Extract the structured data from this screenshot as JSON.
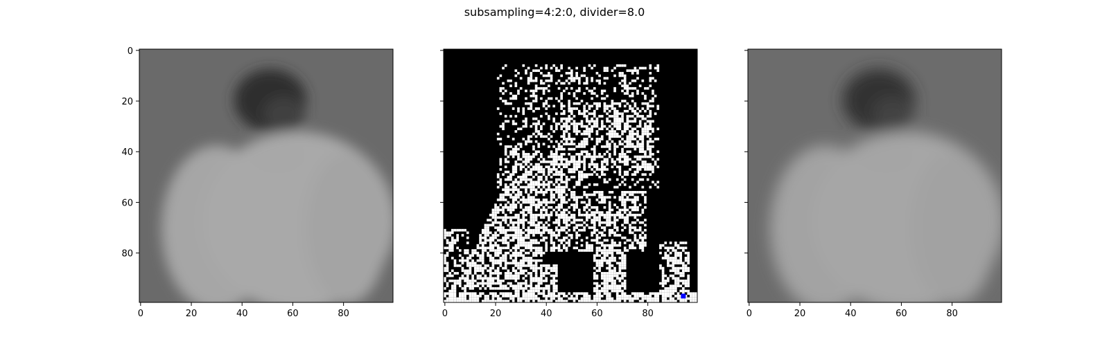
{
  "figure": {
    "title": "subsampling=4:2:0, divider=8.0"
  },
  "chart_data": [
    {
      "type": "heatmap",
      "panel": "left",
      "content": "grayscale image of a person seen from behind (dark hair, light shirt) on a gray background",
      "colormap": "gray",
      "xlim": [
        0,
        99
      ],
      "ylim": [
        99,
        0
      ],
      "xticks": [
        0,
        20,
        40,
        60,
        80
      ],
      "yticks": [
        0,
        20,
        40,
        60,
        80
      ],
      "xtick_labels_shown": true,
      "ytick_labels_shown": true
    },
    {
      "type": "heatmap",
      "panel": "middle",
      "content": "binary black/white difference mask with one blue marker near the bottom-right corner",
      "colormap": "binary",
      "marker": {
        "x": 94,
        "y": 97,
        "color": "#0000ff"
      },
      "xlim": [
        0,
        99
      ],
      "ylim": [
        99,
        0
      ],
      "xticks": [
        0,
        20,
        40,
        60,
        80
      ],
      "yticks": [
        0,
        20,
        40,
        60,
        80
      ],
      "xtick_labels_shown": true,
      "ytick_labels_shown": false
    },
    {
      "type": "heatmap",
      "panel": "right",
      "content": "smoothed grayscale image of the same person seen from behind",
      "colormap": "gray",
      "xlim": [
        0,
        99
      ],
      "ylim": [
        99,
        0
      ],
      "xticks": [
        0,
        20,
        40,
        60,
        80
      ],
      "yticks": [
        0,
        20,
        40,
        60,
        80
      ],
      "xtick_labels_shown": true,
      "ytick_labels_shown": false
    }
  ]
}
